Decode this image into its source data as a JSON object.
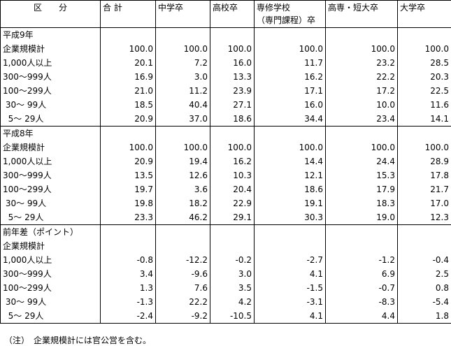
{
  "header": {
    "columns": [
      "区　　分",
      "合 計",
      "中学卒",
      "高校卒",
      [
        "専修学校",
        "（専門課程）卒"
      ],
      "高専・短大卒",
      "大学卒"
    ]
  },
  "sections": [
    {
      "title": "平成9年",
      "rows": [
        {
          "label": "企業規模計",
          "values": [
            "100.0",
            "100.0",
            "100.0",
            "100.0",
            "100.0",
            "100.0"
          ]
        },
        {
          "label": "1,000人以上",
          "values": [
            "20.1",
            "7.2",
            "16.0",
            "11.7",
            "23.2",
            "28.5"
          ]
        },
        {
          "label": "300～999人",
          "values": [
            "16.9",
            "3.0",
            "13.3",
            "16.2",
            "22.2",
            "20.3"
          ]
        },
        {
          "label": "100～299人",
          "values": [
            "21.0",
            "11.2",
            "23.9",
            "17.1",
            "17.2",
            "22.5"
          ]
        },
        {
          "label": " 30～ 99人",
          "values": [
            "18.5",
            "40.4",
            "27.1",
            "16.0",
            "10.0",
            "11.6"
          ]
        },
        {
          "label": "  5～ 29人",
          "values": [
            "20.9",
            "37.0",
            "18.6",
            "34.4",
            "23.4",
            "14.1"
          ]
        }
      ]
    },
    {
      "title": "平成8年",
      "rows": [
        {
          "label": "企業規模計",
          "values": [
            "100.0",
            "100.0",
            "100.0",
            "100.0",
            "100.0",
            "100.0"
          ]
        },
        {
          "label": "1,000人以上",
          "values": [
            "20.9",
            "19.4",
            "16.2",
            "14.4",
            "24.4",
            "28.9"
          ]
        },
        {
          "label": "300～999人",
          "values": [
            "13.5",
            "12.6",
            "10.3",
            "12.1",
            "15.3",
            "17.8"
          ]
        },
        {
          "label": "100～299人",
          "values": [
            "19.7",
            "3.6",
            "20.4",
            "18.6",
            "17.9",
            "21.7"
          ]
        },
        {
          "label": " 30～ 99人",
          "values": [
            "19.8",
            "18.2",
            "22.9",
            "19.1",
            "18.3",
            "17.0"
          ]
        },
        {
          "label": "  5～ 29人",
          "values": [
            "23.3",
            "46.2",
            "29.1",
            "30.3",
            "19.0",
            "12.3"
          ]
        }
      ]
    },
    {
      "title": "前年差（ポイント）",
      "rows": [
        {
          "label": "企業規模計",
          "values": []
        },
        {
          "label": "1,000人以上",
          "values": [
            "-0.8",
            "-12.2",
            "-0.2",
            "-2.7",
            "-1.2",
            "-0.4"
          ]
        },
        {
          "label": "300～999人",
          "values": [
            "3.4",
            "-9.6",
            "3.0",
            "4.1",
            "6.9",
            "2.5"
          ]
        },
        {
          "label": "100～299人",
          "values": [
            "1.3",
            "7.6",
            "3.5",
            "-1.5",
            "-0.7",
            "0.8"
          ]
        },
        {
          "label": " 30～ 99人",
          "values": [
            "-1.3",
            "22.2",
            "4.2",
            "-3.1",
            "-8.3",
            "-5.4"
          ]
        },
        {
          "label": "  5～ 29人",
          "values": [
            "-2.4",
            "-9.2",
            "-10.5",
            "4.1",
            "4.4",
            "1.8"
          ]
        }
      ]
    }
  ],
  "note": {
    "mark": "（注）",
    "text": "企業規模計には官公営を含む。"
  }
}
